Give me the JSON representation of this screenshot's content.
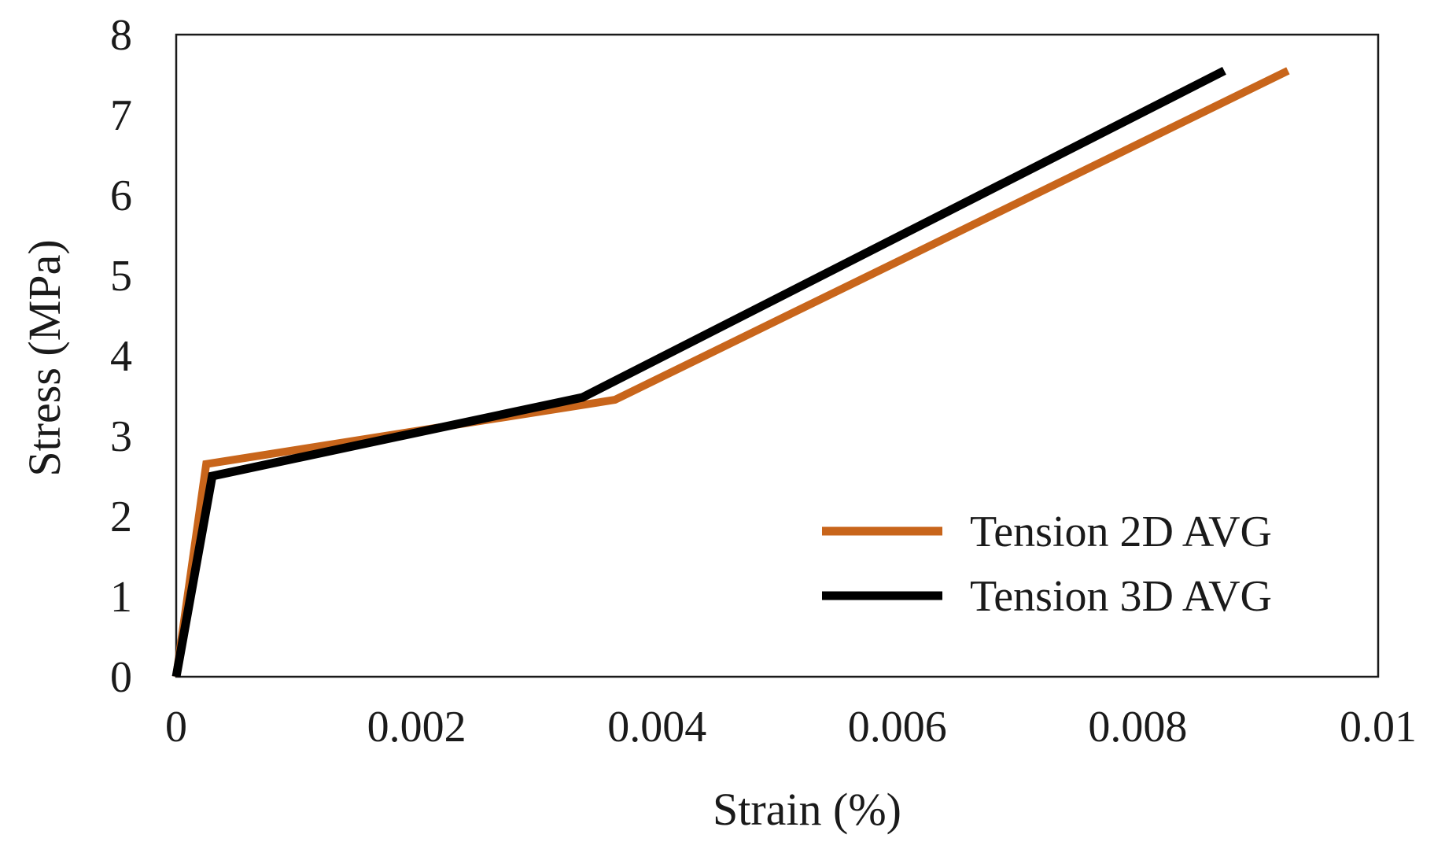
{
  "chart_data": {
    "type": "line",
    "title": "",
    "xlabel": "Strain (%)",
    "ylabel": "Stress (MPa)",
    "xlim": [
      0,
      0.01
    ],
    "ylim": [
      0,
      8
    ],
    "xticks": [
      0,
      0.002,
      0.004,
      0.006,
      0.008,
      0.01
    ],
    "xtick_labels": [
      "0",
      "0.002",
      "0.004",
      "0.006",
      "0.008",
      "0.01"
    ],
    "yticks": [
      0,
      1,
      2,
      3,
      4,
      5,
      6,
      7,
      8
    ],
    "ytick_labels": [
      "0",
      "1",
      "2",
      "3",
      "4",
      "5",
      "6",
      "7",
      "8"
    ],
    "grid": false,
    "legend_position": "bottom-right",
    "series": [
      {
        "name": "Tension 2D AVG",
        "color": "#C8651B",
        "x": [
          0,
          0.00025,
          0.00365,
          0.00925
        ],
        "y": [
          0,
          2.65,
          3.45,
          7.55
        ]
      },
      {
        "name": "Tension 3D AVG",
        "color": "#000000",
        "x": [
          0,
          0.0003,
          0.00338,
          0.00872
        ],
        "y": [
          0,
          2.5,
          3.48,
          7.55
        ]
      }
    ]
  }
}
